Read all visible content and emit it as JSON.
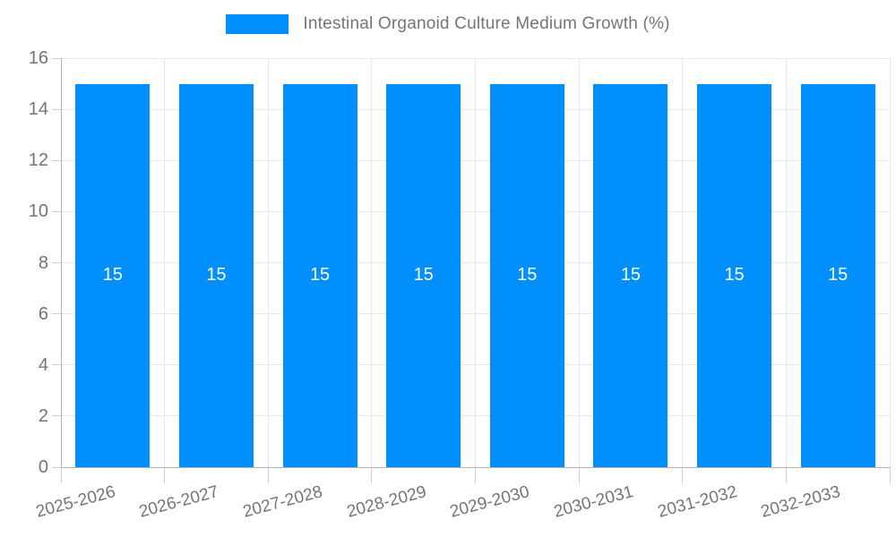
{
  "legend": {
    "label": "Intestinal Organoid Culture Medium Growth (%)",
    "swatch_color": "#008FFB"
  },
  "chart_data": {
    "type": "bar",
    "title": "Intestinal Organoid Culture Medium Growth (%)",
    "categories": [
      "2025-2026",
      "2026-2027",
      "2027-2028",
      "2028-2029",
      "2029-2030",
      "2030-2031",
      "2031-2032",
      "2032-2033"
    ],
    "series": [
      {
        "name": "Intestinal Organoid Culture Medium Growth (%)",
        "values": [
          15,
          15,
          15,
          15,
          15,
          15,
          15,
          15
        ]
      }
    ],
    "data_labels": [
      "15",
      "15",
      "15",
      "15",
      "15",
      "15",
      "15",
      "15"
    ],
    "y_ticks": [
      0,
      2,
      4,
      6,
      8,
      10,
      12,
      14,
      16
    ],
    "ylim": [
      0,
      16
    ],
    "xlabel": "",
    "ylabel": "",
    "grid": true,
    "legend_position": "top",
    "colors": {
      "bar": "#008FFB",
      "axis_text": "#757575",
      "data_label": "#ffffff",
      "gridline": "#e8e8e8",
      "axis_line": "#b5b5b5"
    }
  }
}
